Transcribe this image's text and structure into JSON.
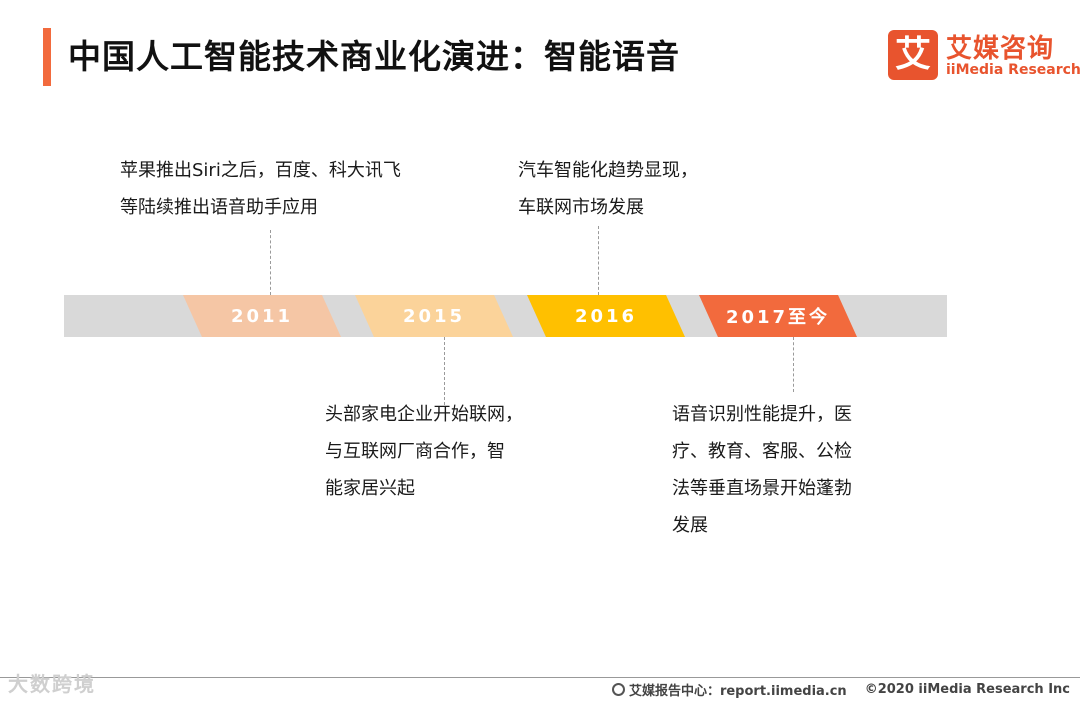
{
  "header": {
    "title": "中国人工智能技术商业化演进：智能语音",
    "logo_mark": "艾",
    "logo_cn": "艾媒咨询",
    "logo_en": "iiMedia Research"
  },
  "timeline": {
    "markers": [
      {
        "label": "2011",
        "color": "#f5c6a5"
      },
      {
        "label": "2015",
        "color": "#fbd39a"
      },
      {
        "label": "2016",
        "color": "#ffc000"
      },
      {
        "label": "2017至今",
        "color": "#f26a3d"
      }
    ],
    "notes": [
      {
        "year": "2011",
        "text": "苹果推出Siri之后，百度、科大讯飞\n等陆续推出语音助手应用"
      },
      {
        "year": "2015",
        "text": "头部家电企业开始联网，\n与互联网厂商合作，智\n能家居兴起"
      },
      {
        "year": "2016",
        "text": "汽车智能化趋势显现，\n车联网市场发展"
      },
      {
        "year": "2017至今",
        "text": "语音识别性能提升，医\n疗、教育、客服、公检\n法等垂直场景开始蓬勃\n发展"
      }
    ]
  },
  "footer": {
    "watermark": "大数跨境",
    "source": "艾媒报告中心：report.iimedia.cn",
    "copyright": "©2020  iiMedia Research  Inc"
  }
}
